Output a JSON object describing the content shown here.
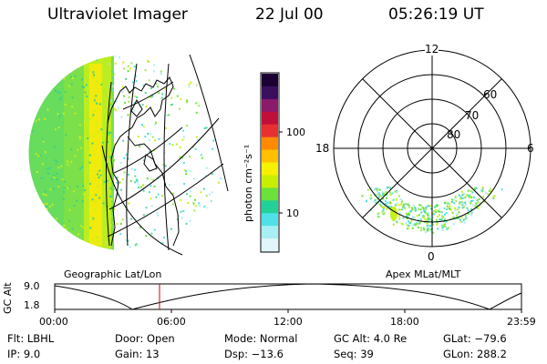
{
  "header": {
    "instrument": "Ultraviolet Imager",
    "date": "22 Jul 00",
    "time": "05:26:19 UT"
  },
  "colorbar": {
    "unit_label": "photon cm⁻²s⁻¹",
    "tick_labels": [
      "100",
      "10"
    ],
    "colors": [
      "#1a0033",
      "#3a0f5e",
      "#8a1a6a",
      "#c0103a",
      "#e83030",
      "#ff8a00",
      "#ffc000",
      "#f7f000",
      "#c8ef00",
      "#6ae23a",
      "#22d09a",
      "#50e0e8",
      "#a8eef5",
      "#e0f6fa"
    ]
  },
  "left_panel": {
    "caption": "Geographic Lat/Lon"
  },
  "right_panel": {
    "caption": "Apex MLat/MLT",
    "mlt_labels": {
      "top": "12",
      "left": "18",
      "right": "6",
      "bottom": "0"
    },
    "mlat_labels": [
      "60",
      "70",
      "80"
    ]
  },
  "altitude_plot": {
    "axis_label": "GC Alt",
    "y_ticks": [
      "9.0",
      "1.8"
    ],
    "x_ticks": [
      "00:00",
      "06:00",
      "12:00",
      "18:00",
      "23:59"
    ],
    "current_marker_color": "#d00000"
  },
  "footer": {
    "flt": "Flt: LBHL",
    "ip": "IP:  9.0",
    "door": "Door: Open",
    "gain": "Gain: 13",
    "mode": "Mode: Normal",
    "dsp": "Dsp:  −13.6",
    "gc_alt": "GC Alt: 4.0 Re",
    "seq": "Seq: 39",
    "glat": "GLat: −79.6",
    "glon": "GLon: 288.2"
  }
}
